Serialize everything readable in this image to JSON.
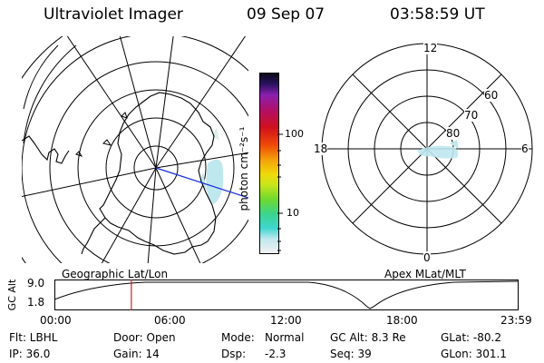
{
  "header": {
    "title": "Ultraviolet Imager",
    "date": "09 Sep 07",
    "time": "03:58:59 UT"
  },
  "colorbar": {
    "unit_label": "photon cm⁻²s⁻¹",
    "ticks": [
      "100",
      "10"
    ],
    "colors": [
      "#f2f2f2",
      "#bfe7ee",
      "#3ed6d0",
      "#3bd48a",
      "#6fd92e",
      "#c7e51a",
      "#f0d90b",
      "#f5a00a",
      "#ef4b07",
      "#d0101d",
      "#b0106a",
      "#8a1fb0",
      "#2c1260",
      "#0a0a18"
    ]
  },
  "left_map": {
    "label": "Geographic Lat/Lon"
  },
  "right_map": {
    "label": "Apex MLat/MLT",
    "mlt_labels": {
      "top": "12",
      "left": "18",
      "right": "6",
      "bottom": "0"
    },
    "mlat_labels": [
      "80",
      "70",
      "60"
    ]
  },
  "timeline": {
    "ylabel": "GC Alt",
    "y_ticks": [
      "9.0",
      "1.8"
    ],
    "x_ticks": [
      "00:00",
      "06:00",
      "12:00",
      "18:00",
      "23:59"
    ],
    "marker_hours": 3.98,
    "marker_color": "#d32020"
  },
  "info": {
    "flt": "Flt: LBHL",
    "ip": "IP: 36.0",
    "door": "Door: Open",
    "gain": "Gain: 14",
    "mode_label": "Mode:",
    "mode_value": "Normal",
    "dsp_label": "Dsp:",
    "dsp_value": "-2.3",
    "gc_alt": "GC Alt: 8.3 Re",
    "seq": "Seq: 39",
    "glat": "GLat: -80.2",
    "glon": "GLon: 301.1"
  }
}
